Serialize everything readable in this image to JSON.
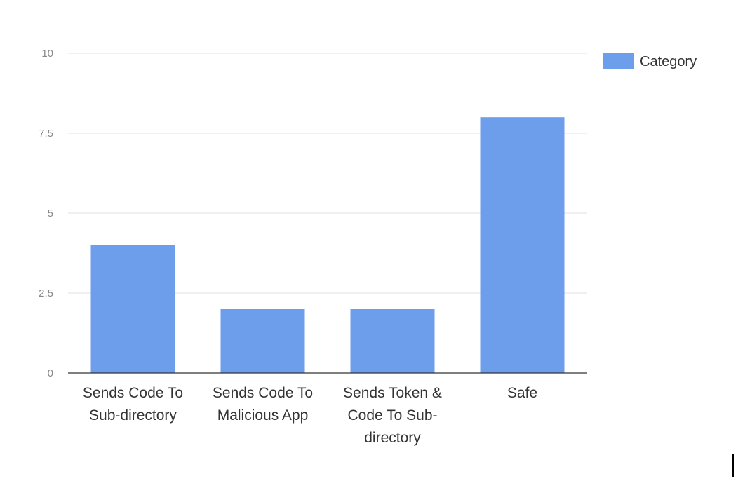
{
  "chart_data": {
    "type": "bar",
    "categories": [
      [
        "Sends Code To",
        "Sub-directory"
      ],
      [
        "Sends Code To",
        "Malicious App"
      ],
      [
        "Sends Token &",
        "Code To Sub-",
        "directory"
      ],
      [
        "Safe"
      ]
    ],
    "series": [
      {
        "name": "Category",
        "values": [
          4,
          2,
          2,
          8
        ],
        "color": "#6d9eeb"
      }
    ],
    "yticks": [
      "0",
      "2.5",
      "5",
      "7.5",
      "10"
    ],
    "ylim": [
      0,
      10
    ],
    "grid": true,
    "legend_position": "top-right"
  }
}
